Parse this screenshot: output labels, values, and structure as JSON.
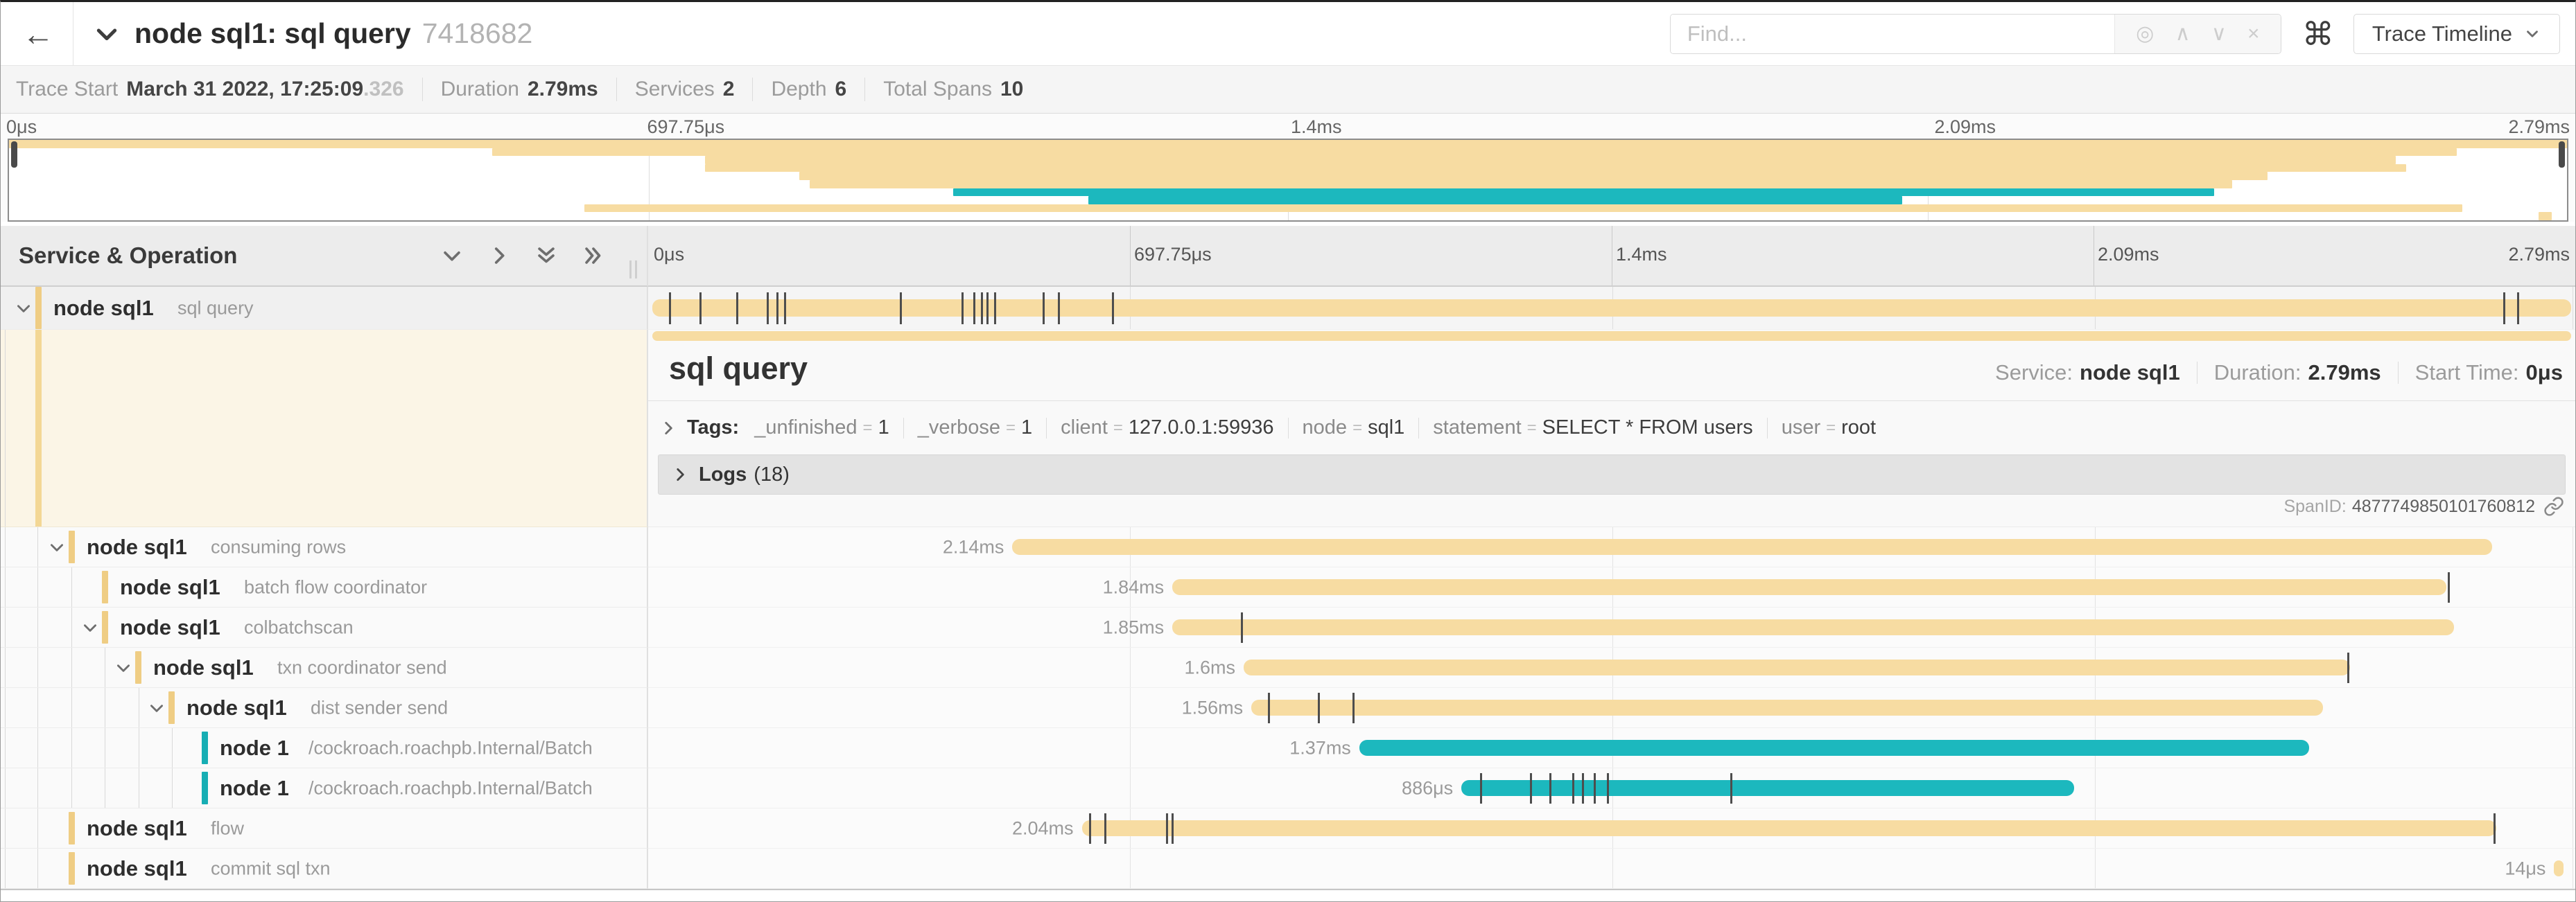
{
  "colors": {
    "bar_tan": "#f7dca2",
    "bar_teal": "#1cb8be",
    "strip_tan": "#efcd84",
    "strip_teal": "#17aeb4",
    "tick": "#4d4d4d"
  },
  "topbar": {
    "back_icon": "←",
    "title": "node sql1: sql query",
    "trace_id": "7418682",
    "find_placeholder": "Find...",
    "find_icons": [
      "locate-icon",
      "prev-icon",
      "next-icon",
      "clear-icon"
    ],
    "keyboard_shortcut_icon": "⌘",
    "view_button_label": "Trace Timeline"
  },
  "summary": {
    "items": [
      {
        "label": "Trace Start",
        "value": "March 31 2022, 17:25:09",
        "suffix": ".326"
      },
      {
        "label": "Duration",
        "value": "2.79ms"
      },
      {
        "label": "Services",
        "value": "2"
      },
      {
        "label": "Depth",
        "value": "6"
      },
      {
        "label": "Total Spans",
        "value": "10"
      }
    ]
  },
  "axis_ticks": [
    "0μs",
    "697.75μs",
    "1.4ms",
    "2.09ms",
    "2.79ms"
  ],
  "left_panel": {
    "header": "Service & Operation"
  },
  "detail": {
    "title": "sql query",
    "meta": [
      {
        "label": "Service:",
        "value": "node sql1"
      },
      {
        "label": "Duration:",
        "value": "2.79ms"
      },
      {
        "label": "Start Time:",
        "value": "0μs"
      }
    ],
    "tags_label": "Tags:",
    "tags": [
      {
        "key": "_unfinished",
        "value": "1"
      },
      {
        "key": "_verbose",
        "value": "1"
      },
      {
        "key": "client",
        "value": "127.0.0.1:59936"
      },
      {
        "key": "node",
        "value": "sql1"
      },
      {
        "key": "statement",
        "value": "SELECT * FROM users"
      },
      {
        "key": "user",
        "value": "root"
      }
    ],
    "logs_label": "Logs",
    "logs_count": "(18)",
    "span_id_label": "SpanID:",
    "span_id": "4877749850101760812"
  },
  "spans": [
    {
      "service": "node sql1",
      "operation": "sql query",
      "label": "",
      "depth": 0,
      "expander": true,
      "color": "tan",
      "selected": true,
      "start_pct": 0,
      "width_pct": 100,
      "ticks": [
        1.1,
        2.7,
        4.6,
        6.2,
        6.7,
        7.1,
        13.1,
        16.3,
        16.9,
        17.3,
        17.6,
        18.0,
        20.5,
        21.3,
        24.1,
        96.3,
        97.0
      ],
      "guides": []
    },
    {
      "service": "node sql1",
      "operation": "consuming rows",
      "label": "2.14ms",
      "depth": 1,
      "expander": true,
      "color": "tan",
      "start_pct": 18.9,
      "width_pct": 76.8,
      "ticks": [],
      "guides": [
        6,
        53
      ]
    },
    {
      "service": "node sql1",
      "operation": "batch flow coordinator",
      "label": "1.84ms",
      "depth": 2,
      "expander": false,
      "color": "tan",
      "start_pct": 27.2,
      "width_pct": 66.1,
      "ticks": [
        93.4
      ],
      "guides": [
        6,
        53,
        102
      ]
    },
    {
      "service": "node sql1",
      "operation": "colbatchscan",
      "label": "1.85ms",
      "depth": 2,
      "expander": true,
      "color": "tan",
      "start_pct": 27.2,
      "width_pct": 66.5,
      "ticks": [
        30.8
      ],
      "guides": [
        6,
        53,
        102
      ]
    },
    {
      "service": "node sql1",
      "operation": "txn coordinator send",
      "label": "1.6ms",
      "depth": 3,
      "expander": true,
      "color": "tan",
      "start_pct": 30.9,
      "width_pct": 57.4,
      "ticks": [
        88.2
      ],
      "guides": [
        6,
        53,
        102,
        150
      ]
    },
    {
      "service": "node sql1",
      "operation": "dist sender send",
      "label": "1.56ms",
      "depth": 4,
      "expander": true,
      "color": "tan",
      "start_pct": 31.3,
      "width_pct": 55.6,
      "ticks": [
        32.2,
        34.8,
        36.6
      ],
      "guides": [
        6,
        53,
        102,
        150,
        199
      ]
    },
    {
      "service": "node 1",
      "operation": "/cockroach.roachpb.Internal/Batch",
      "label": "1.37ms",
      "depth": 5,
      "expander": false,
      "color": "teal",
      "start_pct": 36.9,
      "width_pct": 49.3,
      "ticks": [],
      "guides": [
        6,
        53,
        102,
        150,
        199,
        247
      ]
    },
    {
      "service": "node 1",
      "operation": "/cockroach.roachpb.Internal/Batch",
      "label": "886μs",
      "depth": 5,
      "expander": false,
      "color": "teal",
      "start_pct": 42.2,
      "width_pct": 31.8,
      "ticks": [
        43.2,
        45.8,
        46.8,
        48.0,
        48.5,
        49.1,
        49.8,
        56.2
      ],
      "guides": [
        6,
        53,
        102,
        150,
        199,
        247
      ]
    },
    {
      "service": "node sql1",
      "operation": "flow",
      "label": "2.04ms",
      "depth": 1,
      "expander": false,
      "color": "tan",
      "start_pct": 22.5,
      "width_pct": 73.4,
      "ticks": [
        22.9,
        23.7,
        26.9,
        27.2,
        95.8
      ],
      "guides": [
        6,
        53
      ]
    },
    {
      "service": "node sql1",
      "operation": "commit sql txn",
      "label": "14μs",
      "depth": 1,
      "expander": false,
      "color": "tan",
      "start_pct": 98.9,
      "width_pct": 0.5,
      "ticks": [],
      "guides": [
        6,
        53
      ]
    }
  ]
}
